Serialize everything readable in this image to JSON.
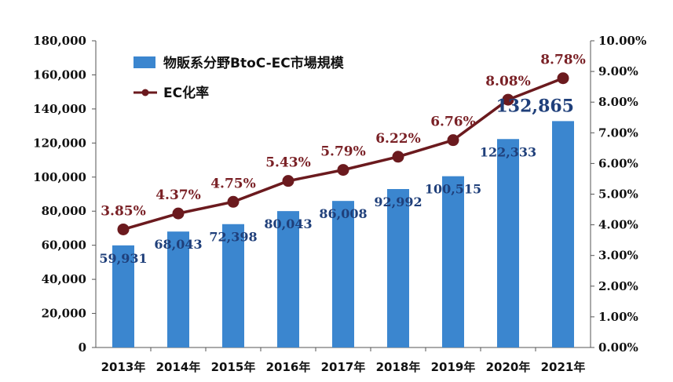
{
  "chart_data": {
    "type": "bar",
    "categories": [
      "2013年",
      "2014年",
      "2015年",
      "2016年",
      "2017年",
      "2018年",
      "2019年",
      "2020年",
      "2021年"
    ],
    "series": [
      {
        "name": "物販系分野BtoC-EC市場規模",
        "type": "bar",
        "axis": "left",
        "values": [
          59931,
          68043,
          72398,
          80043,
          86008,
          92992,
          100515,
          122333,
          132865
        ],
        "labels": [
          "59,931",
          "68,043",
          "72,398",
          "80,043",
          "86,008",
          "92,992",
          "100,515",
          "122,333",
          "132,865"
        ],
        "color": "#3b86cf"
      },
      {
        "name": "EC化率",
        "type": "line",
        "axis": "right",
        "values": [
          3.85,
          4.37,
          4.75,
          5.43,
          5.79,
          6.22,
          6.76,
          8.08,
          8.78
        ],
        "labels": [
          "3.85%",
          "4.37%",
          "4.75%",
          "5.43%",
          "5.79%",
          "6.22%",
          "6.76%",
          "8.08%",
          "8.78%"
        ],
        "color": "#6b1a1e"
      }
    ],
    "ylim_left": [
      0,
      180000
    ],
    "ylim_right": [
      0,
      10
    ],
    "left_ticks": [
      "0",
      "20,000",
      "40,000",
      "60,000",
      "80,000",
      "100,000",
      "120,000",
      "140,000",
      "160,000",
      "180,000"
    ],
    "right_ticks": [
      "0.00%",
      "1.00%",
      "2.00%",
      "3.00%",
      "4.00%",
      "5.00%",
      "6.00%",
      "7.00%",
      "8.00%",
      "9.00%",
      "10.00%"
    ],
    "grid": false,
    "legend": "top-left"
  }
}
